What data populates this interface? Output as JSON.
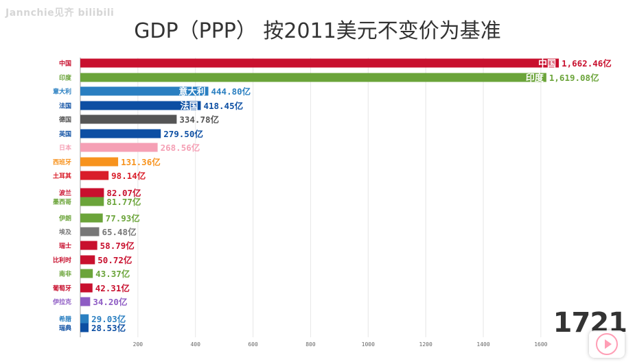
{
  "page": {
    "watermark": "Jannchie见齐 bilibili",
    "title": "GDP（PPP） 按2011美元不变价为基准",
    "year": "1721"
  },
  "chart_data": {
    "type": "bar",
    "orientation": "horizontal",
    "title": "GDP（PPP） 按2011美元不变价为基准",
    "xlabel": "",
    "ylabel": "",
    "xlim": [
      0,
      1800
    ],
    "xticks": [
      200,
      400,
      600,
      800,
      1000,
      1200,
      1400,
      1600
    ],
    "grid": true,
    "value_suffix": "亿",
    "bars": [
      {
        "name": "中国",
        "value": 1662.46,
        "label": "1,662.46亿",
        "color": "#c8102e"
      },
      {
        "name": "印度",
        "value": 1619.08,
        "label": "1,619.08亿",
        "color": "#6ba43a"
      },
      {
        "name": "意大利",
        "value": 444.8,
        "label": "444.80亿",
        "color": "#2a7fc1"
      },
      {
        "name": "法国",
        "value": 418.45,
        "label": "418.45亿",
        "color": "#0d4fa3"
      },
      {
        "name": "德国",
        "value": 334.78,
        "label": "334.78亿",
        "color": "#555555"
      },
      {
        "name": "英国",
        "value": 279.5,
        "label": "279.50亿",
        "color": "#0d4fa3"
      },
      {
        "name": "日本",
        "value": 268.56,
        "label": "268.56亿",
        "color": "#f5a0b5"
      },
      {
        "name": "西班牙",
        "value": 131.36,
        "label": "131.36亿",
        "color": "#f7931e"
      },
      {
        "name": "土耳其",
        "value": 98.14,
        "label": "98.14亿",
        "color": "#d91e2a"
      },
      {
        "name": "波兰",
        "value": 82.07,
        "label": "82.07亿",
        "color": "#c8102e"
      },
      {
        "name": "墨西哥",
        "value": 81.77,
        "label": "81.77亿",
        "color": "#6ba43a"
      },
      {
        "name": "伊朗",
        "value": 77.93,
        "label": "77.93亿",
        "color": "#6ba43a"
      },
      {
        "name": "埃及",
        "value": 65.48,
        "label": "65.48亿",
        "color": "#777777"
      },
      {
        "name": "瑞士",
        "value": 58.79,
        "label": "58.79亿",
        "color": "#c8102e"
      },
      {
        "name": "比利时",
        "value": 50.72,
        "label": "50.72亿",
        "color": "#c8102e"
      },
      {
        "name": "南非",
        "value": 43.37,
        "label": "43.37亿",
        "color": "#6ba43a"
      },
      {
        "name": "葡萄牙",
        "value": 42.31,
        "label": "42.31亿",
        "color": "#c8102e"
      },
      {
        "name": "伊拉克",
        "value": 34.2,
        "label": "34.20亿",
        "color": "#8e5cc4"
      },
      {
        "name": "希腊",
        "value": 29.03,
        "label": "29.03亿",
        "color": "#2a7fc1"
      },
      {
        "name": "瑞典",
        "value": 28.53,
        "label": "28.53亿",
        "color": "#0d4fa3"
      }
    ]
  }
}
